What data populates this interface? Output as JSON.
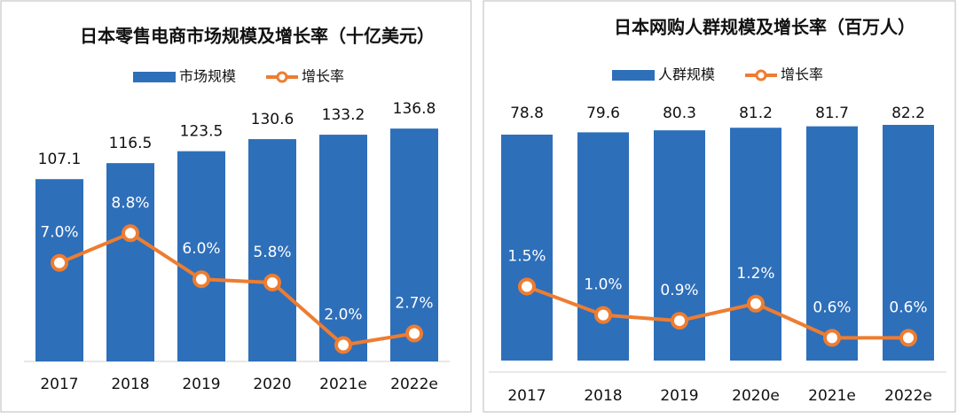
{
  "chart_data": [
    {
      "type": "bar_line",
      "title": "日本零售电商市场规模及增长率（十亿美元）",
      "categories": [
        "2017",
        "2018",
        "2019",
        "2020",
        "2021e",
        "2022e"
      ],
      "series": [
        {
          "name": "市场规模",
          "color": "#2e6fba",
          "values": [
            107.1,
            116.5,
            123.5,
            130.6,
            133.2,
            136.8
          ]
        },
        {
          "name": "增长率",
          "color": "#ed7d31",
          "axis": "y2",
          "values": [
            7.0,
            8.8,
            6.0,
            5.8,
            2.0,
            2.7
          ],
          "value_labels": [
            "7.0%",
            "8.8%",
            "6.0%",
            "5.8%",
            "2.0%",
            "2.7%"
          ]
        }
      ],
      "ylim": [
        0,
        140
      ],
      "y2lim": [
        1,
        15.5
      ],
      "legend": "top"
    },
    {
      "type": "bar_line",
      "title": "日本网购人群规模及增长率（百万人）",
      "categories": [
        "2017",
        "2018",
        "2019",
        "2020e",
        "2021e",
        "2022e"
      ],
      "series": [
        {
          "name": "人群规模",
          "color": "#2e6fba",
          "values": [
            78.8,
            79.6,
            80.3,
            81.2,
            81.7,
            82.2
          ]
        },
        {
          "name": "增长率",
          "color": "#ed7d31",
          "axis": "y2",
          "values": [
            1.5,
            1.0,
            0.9,
            1.2,
            0.6,
            0.6
          ],
          "value_labels": [
            "1.5%",
            "1.0%",
            "0.9%",
            "1.2%",
            "0.6%",
            "0.6%"
          ]
        }
      ],
      "ylim": [
        -4,
        82.5
      ],
      "y2lim": [
        0,
        4.35
      ],
      "legend": "top"
    }
  ]
}
